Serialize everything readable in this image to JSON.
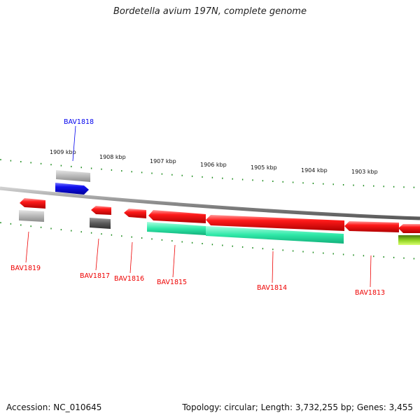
{
  "title": "Bordetella avium 197N, complete genome",
  "footer": {
    "accession": "Accession: NC_010645",
    "topology": "Topology: circular; Length: 3,732,255 bp; Genes: 3,455"
  },
  "ruler_labels": [
    "1909 kbp",
    "1908 kbp",
    "1907 kbp",
    "1906 kbp",
    "1905 kbp",
    "1904 kbp",
    "1903 kbp"
  ],
  "gene_labels": [
    "BAV1818",
    "BAV1819",
    "BAV1817",
    "BAV1816",
    "BAV1815",
    "BAV1814",
    "BAV1813"
  ],
  "colors": {
    "forward_gene": "#0000ee",
    "reverse_gene": "#ee0000",
    "backbone": "#888888",
    "ticks": "#1a8a1a",
    "cog_gray": "#b8b8b8",
    "cog_dark": "#5a5a5a",
    "cog_teal": "#2fe8a8",
    "cog_lime": "#8fd020"
  }
}
